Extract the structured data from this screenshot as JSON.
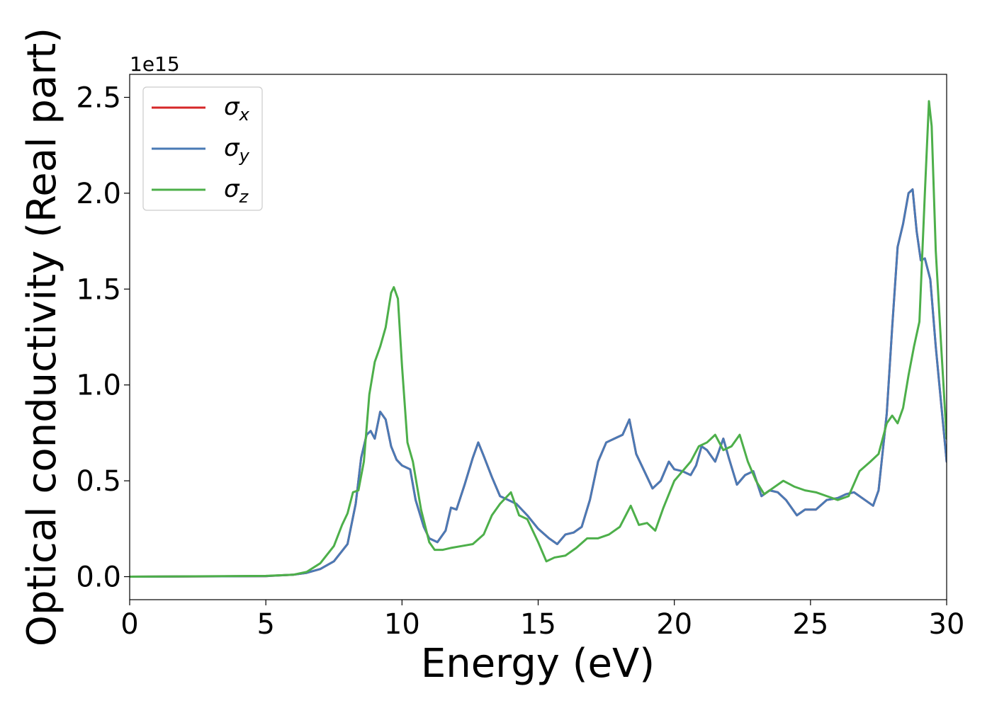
{
  "chart_data": {
    "type": "line",
    "xlabel": "Energy (eV)",
    "ylabel": "Optical conductivity (Real part)",
    "y_offset_label": "1e15",
    "xlim": [
      0,
      30
    ],
    "ylim": [
      -0.12,
      2.62
    ],
    "x_ticks": [
      0,
      5,
      10,
      15,
      20,
      25,
      30
    ],
    "y_ticks": [
      0.0,
      0.5,
      1.0,
      1.5,
      2.0,
      2.5
    ],
    "y_tick_labels": [
      "0.0",
      "0.5",
      "1.0",
      "1.5",
      "2.0",
      "2.5"
    ],
    "grid": false,
    "legend_position": "top-left",
    "series": [
      {
        "name": "σx",
        "symbol": "σ",
        "subscript": "x",
        "color": "#d62728",
        "x": [
          0,
          5,
          6,
          6.5,
          7,
          7.5,
          8,
          8.3,
          8.5,
          8.7,
          8.85,
          9,
          9.2,
          9.4,
          9.6,
          9.8,
          10,
          10.3,
          10.5,
          10.8,
          11,
          11.3,
          11.6,
          11.8,
          12,
          12.3,
          12.6,
          12.8,
          13,
          13.3,
          13.6,
          13.9,
          14.2,
          14.6,
          15,
          15.4,
          15.7,
          16,
          16.3,
          16.6,
          16.9,
          17.2,
          17.5,
          17.8,
          18.1,
          18.35,
          18.6,
          18.9,
          19.2,
          19.5,
          19.8,
          20,
          20.3,
          20.6,
          20.8,
          21,
          21.2,
          21.5,
          21.8,
          22,
          22.3,
          22.6,
          22.9,
          23.2,
          23.5,
          23.8,
          24.1,
          24.5,
          24.8,
          25.2,
          25.6,
          26,
          26.3,
          26.6,
          27,
          27.3,
          27.5,
          27.8,
          28,
          28.2,
          28.4,
          28.6,
          28.75,
          28.9,
          29.05,
          29.2,
          29.4,
          29.6,
          29.8,
          30
        ],
        "y": [
          0,
          0.003,
          0.01,
          0.02,
          0.04,
          0.08,
          0.17,
          0.38,
          0.62,
          0.74,
          0.76,
          0.72,
          0.86,
          0.82,
          0.68,
          0.61,
          0.58,
          0.56,
          0.4,
          0.26,
          0.2,
          0.18,
          0.24,
          0.36,
          0.35,
          0.48,
          0.62,
          0.7,
          0.63,
          0.52,
          0.42,
          0.4,
          0.38,
          0.32,
          0.25,
          0.2,
          0.17,
          0.22,
          0.23,
          0.26,
          0.4,
          0.6,
          0.7,
          0.72,
          0.74,
          0.82,
          0.64,
          0.55,
          0.46,
          0.5,
          0.6,
          0.56,
          0.55,
          0.53,
          0.58,
          0.68,
          0.66,
          0.6,
          0.72,
          0.62,
          0.48,
          0.53,
          0.55,
          0.42,
          0.45,
          0.44,
          0.4,
          0.32,
          0.35,
          0.35,
          0.4,
          0.41,
          0.43,
          0.44,
          0.4,
          0.37,
          0.45,
          0.85,
          1.3,
          1.72,
          1.84,
          2.0,
          2.02,
          1.8,
          1.65,
          1.66,
          1.55,
          1.2,
          0.9,
          0.6
        ]
      },
      {
        "name": "σy",
        "symbol": "σ",
        "subscript": "y",
        "color": "#4a7ab5",
        "x": [
          0,
          5,
          6,
          6.5,
          7,
          7.5,
          8,
          8.3,
          8.5,
          8.7,
          8.85,
          9,
          9.2,
          9.4,
          9.6,
          9.8,
          10,
          10.3,
          10.5,
          10.8,
          11,
          11.3,
          11.6,
          11.8,
          12,
          12.3,
          12.6,
          12.8,
          13,
          13.3,
          13.6,
          13.9,
          14.2,
          14.6,
          15,
          15.4,
          15.7,
          16,
          16.3,
          16.6,
          16.9,
          17.2,
          17.5,
          17.8,
          18.1,
          18.35,
          18.6,
          18.9,
          19.2,
          19.5,
          19.8,
          20,
          20.3,
          20.6,
          20.8,
          21,
          21.2,
          21.5,
          21.8,
          22,
          22.3,
          22.6,
          22.9,
          23.2,
          23.5,
          23.8,
          24.1,
          24.5,
          24.8,
          25.2,
          25.6,
          26,
          26.3,
          26.6,
          27,
          27.3,
          27.5,
          27.8,
          28,
          28.2,
          28.4,
          28.6,
          28.75,
          28.9,
          29.05,
          29.2,
          29.4,
          29.6,
          29.8,
          30
        ],
        "y": [
          0,
          0.003,
          0.01,
          0.02,
          0.04,
          0.08,
          0.17,
          0.38,
          0.62,
          0.74,
          0.76,
          0.72,
          0.86,
          0.82,
          0.68,
          0.61,
          0.58,
          0.56,
          0.4,
          0.26,
          0.2,
          0.18,
          0.24,
          0.36,
          0.35,
          0.48,
          0.62,
          0.7,
          0.63,
          0.52,
          0.42,
          0.4,
          0.38,
          0.32,
          0.25,
          0.2,
          0.17,
          0.22,
          0.23,
          0.26,
          0.4,
          0.6,
          0.7,
          0.72,
          0.74,
          0.82,
          0.64,
          0.55,
          0.46,
          0.5,
          0.6,
          0.56,
          0.55,
          0.53,
          0.58,
          0.68,
          0.66,
          0.6,
          0.72,
          0.62,
          0.48,
          0.53,
          0.55,
          0.42,
          0.45,
          0.44,
          0.4,
          0.32,
          0.35,
          0.35,
          0.4,
          0.41,
          0.43,
          0.44,
          0.4,
          0.37,
          0.45,
          0.85,
          1.3,
          1.72,
          1.84,
          2.0,
          2.02,
          1.8,
          1.65,
          1.66,
          1.55,
          1.2,
          0.9,
          0.6
        ]
      },
      {
        "name": "σz",
        "symbol": "σ",
        "subscript": "z",
        "color": "#4daf4a",
        "x": [
          0,
          5,
          6,
          6.5,
          7,
          7.5,
          7.8,
          8,
          8.2,
          8.4,
          8.6,
          8.8,
          9,
          9.2,
          9.4,
          9.6,
          9.7,
          9.85,
          10,
          10.2,
          10.4,
          10.7,
          11,
          11.2,
          11.5,
          11.8,
          12.2,
          12.6,
          13,
          13.3,
          13.6,
          14,
          14.3,
          14.6,
          15,
          15.3,
          15.6,
          16,
          16.4,
          16.8,
          17.2,
          17.6,
          18,
          18.4,
          18.7,
          19,
          19.3,
          19.6,
          20,
          20.3,
          20.6,
          20.9,
          21.2,
          21.5,
          21.8,
          22.1,
          22.4,
          22.7,
          23,
          23.3,
          23.6,
          24,
          24.4,
          24.8,
          25.2,
          25.6,
          26,
          26.4,
          26.8,
          27.2,
          27.5,
          27.8,
          28,
          28.2,
          28.4,
          28.6,
          28.8,
          29,
          29.2,
          29.35,
          29.45,
          29.6,
          29.8,
          30
        ],
        "y": [
          0,
          0.004,
          0.01,
          0.025,
          0.07,
          0.16,
          0.27,
          0.33,
          0.44,
          0.45,
          0.6,
          0.95,
          1.12,
          1.2,
          1.3,
          1.48,
          1.51,
          1.45,
          1.1,
          0.7,
          0.6,
          0.35,
          0.18,
          0.14,
          0.14,
          0.15,
          0.16,
          0.17,
          0.22,
          0.32,
          0.38,
          0.44,
          0.32,
          0.3,
          0.18,
          0.08,
          0.1,
          0.11,
          0.15,
          0.2,
          0.2,
          0.22,
          0.26,
          0.37,
          0.27,
          0.28,
          0.24,
          0.36,
          0.5,
          0.55,
          0.6,
          0.68,
          0.7,
          0.74,
          0.66,
          0.68,
          0.74,
          0.6,
          0.5,
          0.43,
          0.46,
          0.5,
          0.47,
          0.45,
          0.44,
          0.42,
          0.4,
          0.42,
          0.55,
          0.6,
          0.64,
          0.8,
          0.84,
          0.8,
          0.88,
          1.05,
          1.2,
          1.33,
          2.0,
          2.48,
          2.35,
          1.7,
          1.2,
          0.72
        ]
      }
    ]
  }
}
